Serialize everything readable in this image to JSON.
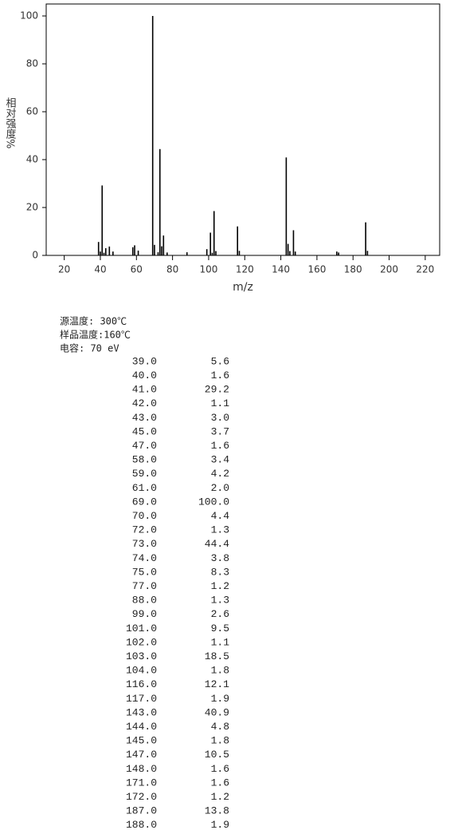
{
  "chart_data": {
    "type": "bar",
    "xlabel": "m/z",
    "ylabel": "相对强度%",
    "x": [
      39,
      40,
      41,
      42,
      43,
      45,
      47,
      58,
      59,
      61,
      69,
      70,
      72,
      73,
      74,
      75,
      77,
      88,
      99,
      101,
      102,
      103,
      104,
      116,
      117,
      143,
      144,
      145,
      147,
      148,
      171,
      172,
      187,
      188
    ],
    "values": [
      5.6,
      1.6,
      29.2,
      1.1,
      3.0,
      3.7,
      1.6,
      3.4,
      4.2,
      2.0,
      100.0,
      4.4,
      1.3,
      44.4,
      3.8,
      8.3,
      1.2,
      1.3,
      2.6,
      9.5,
      1.1,
      18.5,
      1.8,
      12.1,
      1.9,
      40.9,
      4.8,
      1.8,
      10.5,
      1.6,
      1.6,
      1.2,
      13.8,
      1.9
    ],
    "color": "#000000",
    "xlim": [
      10,
      228
    ],
    "ylim": [
      0,
      105
    ],
    "xticks": [
      20,
      40,
      60,
      80,
      100,
      120,
      140,
      160,
      180,
      200,
      220
    ],
    "yticks": [
      0,
      20,
      40,
      60,
      80,
      100
    ]
  },
  "conditions": [
    "源温度: 300℃",
    "样品温度:160℃",
    "电容: 70 eV"
  ],
  "table": {
    "rows": [
      [
        "39.0",
        "5.6"
      ],
      [
        "40.0",
        "1.6"
      ],
      [
        "41.0",
        "29.2"
      ],
      [
        "42.0",
        "1.1"
      ],
      [
        "43.0",
        "3.0"
      ],
      [
        "45.0",
        "3.7"
      ],
      [
        "47.0",
        "1.6"
      ],
      [
        "58.0",
        "3.4"
      ],
      [
        "59.0",
        "4.2"
      ],
      [
        "61.0",
        "2.0"
      ],
      [
        "69.0",
        "100.0"
      ],
      [
        "70.0",
        "4.4"
      ],
      [
        "72.0",
        "1.3"
      ],
      [
        "73.0",
        "44.4"
      ],
      [
        "74.0",
        "3.8"
      ],
      [
        "75.0",
        "8.3"
      ],
      [
        "77.0",
        "1.2"
      ],
      [
        "88.0",
        "1.3"
      ],
      [
        "99.0",
        "2.6"
      ],
      [
        "101.0",
        "9.5"
      ],
      [
        "102.0",
        "1.1"
      ],
      [
        "103.0",
        "18.5"
      ],
      [
        "104.0",
        "1.8"
      ],
      [
        "116.0",
        "12.1"
      ],
      [
        "117.0",
        "1.9"
      ],
      [
        "143.0",
        "40.9"
      ],
      [
        "144.0",
        "4.8"
      ],
      [
        "145.0",
        "1.8"
      ],
      [
        "147.0",
        "10.5"
      ],
      [
        "148.0",
        "1.6"
      ],
      [
        "171.0",
        "1.6"
      ],
      [
        "172.0",
        "1.2"
      ],
      [
        "187.0",
        "13.8"
      ],
      [
        "188.0",
        "1.9"
      ]
    ]
  }
}
